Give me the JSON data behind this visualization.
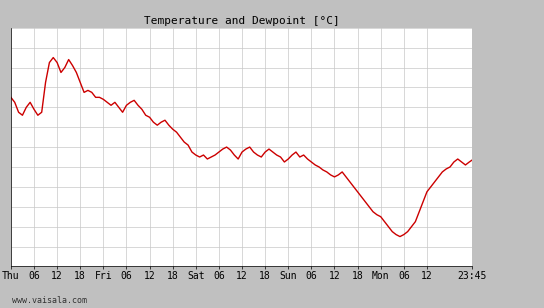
{
  "title": "Temperature and Dewpoint [°C]",
  "line_color": "#cc0000",
  "line_width": 1.0,
  "bg_color": "#ffffff",
  "grid_color": "#c8c8c8",
  "x_tick_labels": [
    "Thu",
    "06",
    "12",
    "18",
    "Fri",
    "06",
    "12",
    "18",
    "Sat",
    "06",
    "12",
    "18",
    "Sun",
    "06",
    "12",
    "18",
    "Mon",
    "06",
    "12",
    "23:45"
  ],
  "x_tick_positions": [
    0,
    6,
    12,
    18,
    24,
    30,
    36,
    42,
    48,
    54,
    60,
    66,
    72,
    78,
    84,
    90,
    96,
    102,
    108,
    119.75
  ],
  "ylim": [
    -18,
    6
  ],
  "xlim": [
    0,
    119.75
  ],
  "yticks": [
    -18,
    -16,
    -14,
    -12,
    -10,
    -8,
    -6,
    -4,
    -2,
    0,
    2,
    4,
    6
  ],
  "watermark": "www.vaisala.com",
  "panel_color": "#c0c0c0",
  "data_points": [
    [
      0,
      -1.0
    ],
    [
      1,
      -1.5
    ],
    [
      2,
      -2.5
    ],
    [
      3,
      -2.8
    ],
    [
      4,
      -2.0
    ],
    [
      5,
      -1.5
    ],
    [
      6,
      -2.2
    ],
    [
      7,
      -2.8
    ],
    [
      8,
      -2.5
    ],
    [
      9,
      0.5
    ],
    [
      10,
      2.5
    ],
    [
      11,
      3.0
    ],
    [
      12,
      2.5
    ],
    [
      13,
      1.5
    ],
    [
      14,
      2.0
    ],
    [
      15,
      2.8
    ],
    [
      16,
      2.2
    ],
    [
      17,
      1.5
    ],
    [
      18,
      0.5
    ],
    [
      19,
      -0.5
    ],
    [
      20,
      -0.3
    ],
    [
      21,
      -0.5
    ],
    [
      22,
      -1.0
    ],
    [
      23,
      -1.0
    ],
    [
      24,
      -1.2
    ],
    [
      25,
      -1.5
    ],
    [
      26,
      -1.8
    ],
    [
      27,
      -1.5
    ],
    [
      28,
      -2.0
    ],
    [
      29,
      -2.5
    ],
    [
      30,
      -1.8
    ],
    [
      31,
      -1.5
    ],
    [
      32,
      -1.3
    ],
    [
      33,
      -1.8
    ],
    [
      34,
      -2.2
    ],
    [
      35,
      -2.8
    ],
    [
      36,
      -3.0
    ],
    [
      37,
      -3.5
    ],
    [
      38,
      -3.8
    ],
    [
      39,
      -3.5
    ],
    [
      40,
      -3.3
    ],
    [
      41,
      -3.8
    ],
    [
      42,
      -4.2
    ],
    [
      43,
      -4.5
    ],
    [
      44,
      -5.0
    ],
    [
      45,
      -5.5
    ],
    [
      46,
      -5.8
    ],
    [
      47,
      -6.5
    ],
    [
      48,
      -6.8
    ],
    [
      49,
      -7.0
    ],
    [
      50,
      -6.8
    ],
    [
      51,
      -7.2
    ],
    [
      52,
      -7.0
    ],
    [
      53,
      -6.8
    ],
    [
      54,
      -6.5
    ],
    [
      55,
      -6.2
    ],
    [
      56,
      -6.0
    ],
    [
      57,
      -6.3
    ],
    [
      58,
      -6.8
    ],
    [
      59,
      -7.2
    ],
    [
      60,
      -6.5
    ],
    [
      61,
      -6.2
    ],
    [
      62,
      -6.0
    ],
    [
      63,
      -6.5
    ],
    [
      64,
      -6.8
    ],
    [
      65,
      -7.0
    ],
    [
      66,
      -6.5
    ],
    [
      67,
      -6.2
    ],
    [
      68,
      -6.5
    ],
    [
      69,
      -6.8
    ],
    [
      70,
      -7.0
    ],
    [
      71,
      -7.5
    ],
    [
      72,
      -7.2
    ],
    [
      73,
      -6.8
    ],
    [
      74,
      -6.5
    ],
    [
      75,
      -7.0
    ],
    [
      76,
      -6.8
    ],
    [
      77,
      -7.2
    ],
    [
      78,
      -7.5
    ],
    [
      79,
      -7.8
    ],
    [
      80,
      -8.0
    ],
    [
      81,
      -8.3
    ],
    [
      82,
      -8.5
    ],
    [
      83,
      -8.8
    ],
    [
      84,
      -9.0
    ],
    [
      85,
      -8.8
    ],
    [
      86,
      -8.5
    ],
    [
      87,
      -9.0
    ],
    [
      88,
      -9.5
    ],
    [
      89,
      -10.0
    ],
    [
      90,
      -10.5
    ],
    [
      91,
      -11.0
    ],
    [
      92,
      -11.5
    ],
    [
      93,
      -12.0
    ],
    [
      94,
      -12.5
    ],
    [
      95,
      -12.8
    ],
    [
      96,
      -13.0
    ],
    [
      97,
      -13.5
    ],
    [
      98,
      -14.0
    ],
    [
      99,
      -14.5
    ],
    [
      100,
      -14.8
    ],
    [
      101,
      -15.0
    ],
    [
      102,
      -14.8
    ],
    [
      103,
      -14.5
    ],
    [
      104,
      -14.0
    ],
    [
      105,
      -13.5
    ],
    [
      106,
      -12.5
    ],
    [
      107,
      -11.5
    ],
    [
      108,
      -10.5
    ],
    [
      109,
      -10.0
    ],
    [
      110,
      -9.5
    ],
    [
      111,
      -9.0
    ],
    [
      112,
      -8.5
    ],
    [
      113,
      -8.2
    ],
    [
      114,
      -8.0
    ],
    [
      115,
      -7.5
    ],
    [
      116,
      -7.2
    ],
    [
      117,
      -7.5
    ],
    [
      118,
      -7.8
    ],
    [
      119,
      -7.5
    ],
    [
      119.75,
      -7.3
    ]
  ]
}
